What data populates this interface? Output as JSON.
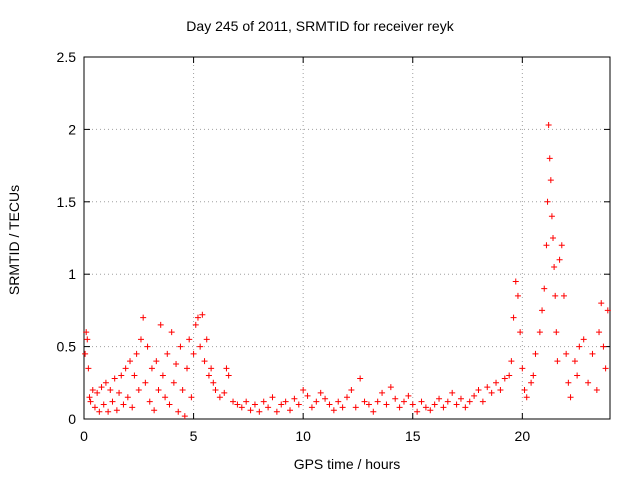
{
  "chart_data": {
    "type": "scatter",
    "title": "Day 245 of 2011, SRMTID for receiver reyk",
    "xlabel": "GPS time / hours",
    "ylabel": "SRMTID / TECUs",
    "xlim": [
      0,
      24
    ],
    "ylim": [
      0,
      2.5
    ],
    "xticks": [
      0,
      5,
      10,
      15,
      20
    ],
    "yticks": [
      0,
      0.5,
      1,
      1.5,
      2,
      2.5
    ],
    "grid": true,
    "marker": "+",
    "marker_color": "#ff0000",
    "series": [
      {
        "points": [
          [
            0.05,
            0.45
          ],
          [
            0.1,
            0.6
          ],
          [
            0.15,
            0.55
          ],
          [
            0.2,
            0.35
          ],
          [
            0.25,
            0.15
          ],
          [
            0.3,
            0.12
          ],
          [
            0.4,
            0.2
          ],
          [
            0.5,
            0.08
          ],
          [
            0.6,
            0.18
          ],
          [
            0.7,
            0.05
          ],
          [
            0.8,
            0.22
          ],
          [
            0.9,
            0.1
          ],
          [
            1.0,
            0.25
          ],
          [
            1.1,
            0.05
          ],
          [
            1.2,
            0.2
          ],
          [
            1.3,
            0.12
          ],
          [
            1.4,
            0.28
          ],
          [
            1.5,
            0.06
          ],
          [
            1.6,
            0.18
          ],
          [
            1.7,
            0.3
          ],
          [
            1.8,
            0.1
          ],
          [
            1.9,
            0.35
          ],
          [
            2.0,
            0.15
          ],
          [
            2.1,
            0.4
          ],
          [
            2.2,
            0.08
          ],
          [
            2.3,
            0.3
          ],
          [
            2.4,
            0.45
          ],
          [
            2.5,
            0.2
          ],
          [
            2.6,
            0.55
          ],
          [
            2.7,
            0.7
          ],
          [
            2.8,
            0.25
          ],
          [
            2.9,
            0.5
          ],
          [
            3.0,
            0.12
          ],
          [
            3.1,
            0.35
          ],
          [
            3.2,
            0.06
          ],
          [
            3.3,
            0.4
          ],
          [
            3.4,
            0.2
          ],
          [
            3.5,
            0.65
          ],
          [
            3.6,
            0.3
          ],
          [
            3.7,
            0.15
          ],
          [
            3.8,
            0.45
          ],
          [
            3.9,
            0.1
          ],
          [
            4.0,
            0.6
          ],
          [
            4.1,
            0.25
          ],
          [
            4.2,
            0.38
          ],
          [
            4.3,
            0.05
          ],
          [
            4.4,
            0.5
          ],
          [
            4.5,
            0.2
          ],
          [
            4.6,
            0.02
          ],
          [
            4.7,
            0.35
          ],
          [
            4.8,
            0.55
          ],
          [
            4.9,
            0.15
          ],
          [
            5.0,
            0.45
          ],
          [
            5.1,
            0.65
          ],
          [
            5.2,
            0.7
          ],
          [
            5.3,
            0.5
          ],
          [
            5.4,
            0.72
          ],
          [
            5.5,
            0.4
          ],
          [
            5.6,
            0.55
          ],
          [
            5.7,
            0.3
          ],
          [
            5.8,
            0.35
          ],
          [
            5.9,
            0.25
          ],
          [
            6.0,
            0.2
          ],
          [
            6.2,
            0.15
          ],
          [
            6.4,
            0.18
          ],
          [
            6.5,
            0.35
          ],
          [
            6.6,
            0.3
          ],
          [
            6.8,
            0.12
          ],
          [
            7.0,
            0.1
          ],
          [
            7.2,
            0.08
          ],
          [
            7.4,
            0.12
          ],
          [
            7.6,
            0.06
          ],
          [
            7.8,
            0.1
          ],
          [
            8.0,
            0.05
          ],
          [
            8.2,
            0.12
          ],
          [
            8.4,
            0.08
          ],
          [
            8.6,
            0.15
          ],
          [
            8.8,
            0.05
          ],
          [
            9.0,
            0.1
          ],
          [
            9.2,
            0.12
          ],
          [
            9.4,
            0.06
          ],
          [
            9.6,
            0.14
          ],
          [
            9.8,
            0.1
          ],
          [
            10.0,
            0.2
          ],
          [
            10.2,
            0.16
          ],
          [
            10.4,
            0.08
          ],
          [
            10.6,
            0.12
          ],
          [
            10.8,
            0.18
          ],
          [
            11.0,
            0.14
          ],
          [
            11.2,
            0.1
          ],
          [
            11.4,
            0.06
          ],
          [
            11.6,
            0.12
          ],
          [
            11.8,
            0.08
          ],
          [
            12.0,
            0.15
          ],
          [
            12.2,
            0.2
          ],
          [
            12.4,
            0.08
          ],
          [
            12.6,
            0.28
          ],
          [
            12.8,
            0.12
          ],
          [
            13.0,
            0.1
          ],
          [
            13.2,
            0.05
          ],
          [
            13.4,
            0.12
          ],
          [
            13.6,
            0.18
          ],
          [
            13.8,
            0.1
          ],
          [
            14.0,
            0.22
          ],
          [
            14.2,
            0.14
          ],
          [
            14.4,
            0.08
          ],
          [
            14.6,
            0.12
          ],
          [
            14.8,
            0.16
          ],
          [
            15.0,
            0.1
          ],
          [
            15.2,
            0.05
          ],
          [
            15.4,
            0.12
          ],
          [
            15.6,
            0.08
          ],
          [
            15.8,
            0.06
          ],
          [
            16.0,
            0.1
          ],
          [
            16.2,
            0.14
          ],
          [
            16.4,
            0.08
          ],
          [
            16.6,
            0.12
          ],
          [
            16.8,
            0.18
          ],
          [
            17.0,
            0.1
          ],
          [
            17.2,
            0.14
          ],
          [
            17.4,
            0.08
          ],
          [
            17.6,
            0.12
          ],
          [
            17.8,
            0.16
          ],
          [
            18.0,
            0.2
          ],
          [
            18.2,
            0.12
          ],
          [
            18.4,
            0.22
          ],
          [
            18.6,
            0.18
          ],
          [
            18.8,
            0.25
          ],
          [
            19.0,
            0.2
          ],
          [
            19.2,
            0.28
          ],
          [
            19.4,
            0.3
          ],
          [
            19.5,
            0.4
          ],
          [
            19.6,
            0.7
          ],
          [
            19.7,
            0.95
          ],
          [
            19.8,
            0.85
          ],
          [
            19.9,
            0.6
          ],
          [
            20.0,
            0.35
          ],
          [
            20.1,
            0.2
          ],
          [
            20.2,
            0.15
          ],
          [
            20.4,
            0.25
          ],
          [
            20.5,
            0.3
          ],
          [
            20.6,
            0.45
          ],
          [
            20.8,
            0.6
          ],
          [
            20.9,
            0.75
          ],
          [
            21.0,
            0.9
          ],
          [
            21.1,
            1.2
          ],
          [
            21.15,
            1.5
          ],
          [
            21.2,
            2.03
          ],
          [
            21.25,
            1.8
          ],
          [
            21.3,
            1.65
          ],
          [
            21.35,
            1.4
          ],
          [
            21.4,
            1.25
          ],
          [
            21.45,
            1.05
          ],
          [
            21.5,
            0.85
          ],
          [
            21.55,
            0.6
          ],
          [
            21.6,
            0.4
          ],
          [
            21.7,
            1.1
          ],
          [
            21.8,
            1.2
          ],
          [
            21.9,
            0.85
          ],
          [
            22.0,
            0.45
          ],
          [
            22.1,
            0.25
          ],
          [
            22.2,
            0.15
          ],
          [
            22.4,
            0.4
          ],
          [
            22.5,
            0.3
          ],
          [
            22.6,
            0.5
          ],
          [
            22.8,
            0.55
          ],
          [
            23.0,
            0.25
          ],
          [
            23.2,
            0.45
          ],
          [
            23.4,
            0.2
          ],
          [
            23.5,
            0.6
          ],
          [
            23.6,
            0.8
          ],
          [
            23.7,
            0.5
          ],
          [
            23.8,
            0.35
          ],
          [
            23.9,
            0.75
          ]
        ]
      }
    ]
  }
}
